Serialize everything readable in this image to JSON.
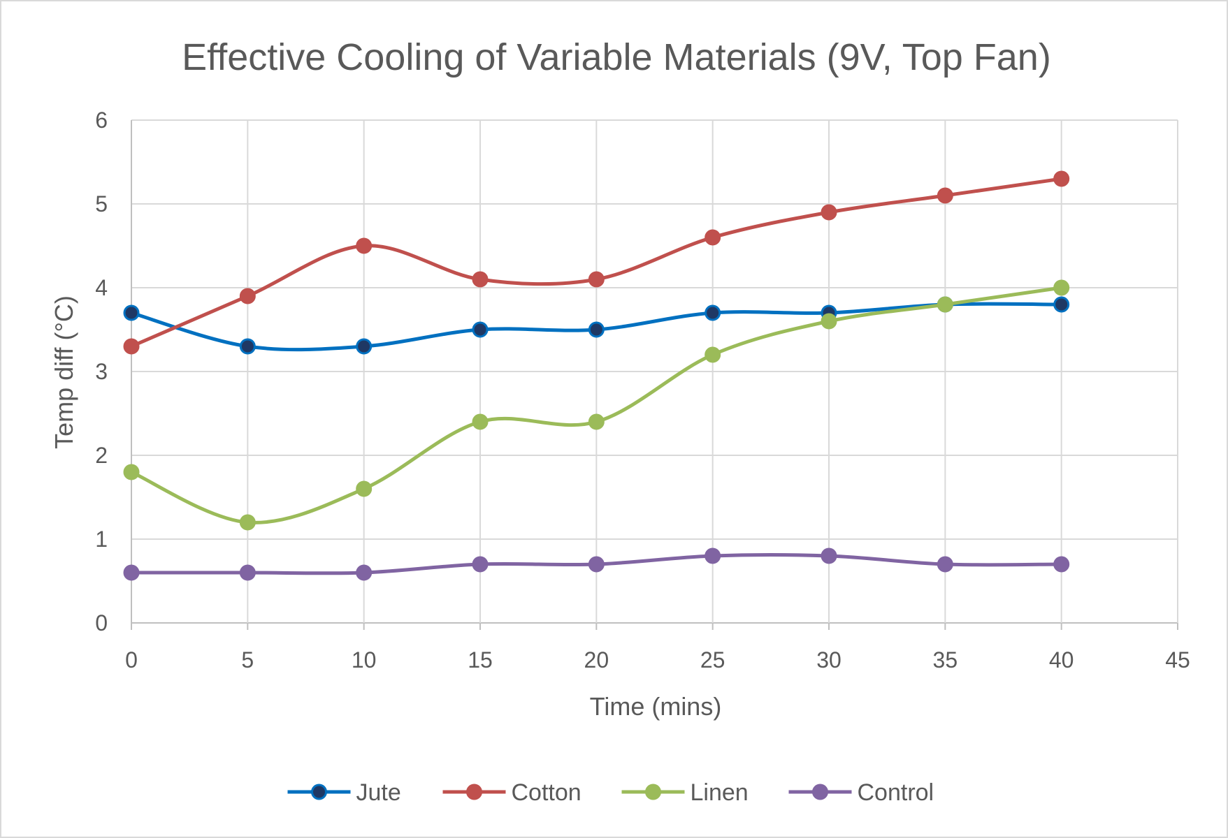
{
  "chart_data": {
    "type": "line",
    "title": "Effective Cooling of Variable Materials (9V, Top Fan)",
    "xlabel": "Time (mins)",
    "ylabel": "Temp diff (°C)",
    "xlim": [
      0,
      45
    ],
    "ylim": [
      0,
      6
    ],
    "x_ticks": [
      0,
      5,
      10,
      15,
      20,
      25,
      30,
      35,
      40,
      45
    ],
    "y_ticks": [
      0,
      1,
      2,
      3,
      4,
      5,
      6
    ],
    "grid": true,
    "smoothed": true,
    "legend_position": "bottom",
    "x": [
      0,
      5,
      10,
      15,
      20,
      25,
      30,
      35,
      40
    ],
    "series": [
      {
        "name": "Jute",
        "color": "#0070C0",
        "marker_fill": "#1F3864",
        "values": [
          3.7,
          3.3,
          3.3,
          3.5,
          3.5,
          3.7,
          3.7,
          3.8,
          3.8
        ]
      },
      {
        "name": "Cotton",
        "color": "#C0504D",
        "marker_fill": "#C0504D",
        "values": [
          3.3,
          3.9,
          4.5,
          4.1,
          4.1,
          4.6,
          4.9,
          5.1,
          5.3
        ]
      },
      {
        "name": "Linen",
        "color": "#9BBB59",
        "marker_fill": "#9BBB59",
        "values": [
          1.8,
          1.2,
          1.6,
          2.4,
          2.4,
          3.2,
          3.6,
          3.8,
          4.0
        ]
      },
      {
        "name": "Control",
        "color": "#8064A2",
        "marker_fill": "#8064A2",
        "values": [
          0.6,
          0.6,
          0.6,
          0.7,
          0.7,
          0.8,
          0.8,
          0.7,
          0.7
        ]
      }
    ]
  }
}
